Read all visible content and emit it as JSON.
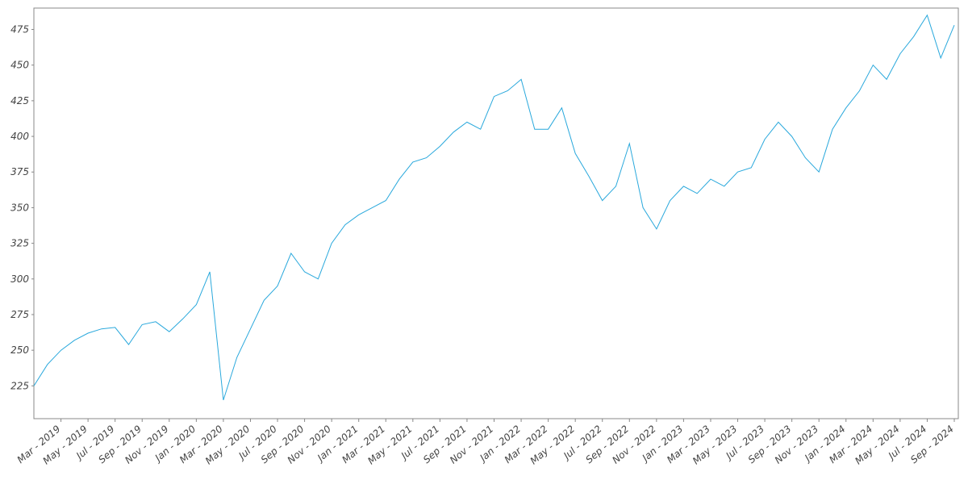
{
  "chart_data": {
    "type": "line",
    "x": [
      "2019-01",
      "2019-02",
      "2019-03",
      "2019-04",
      "2019-05",
      "2019-06",
      "2019-07",
      "2019-08",
      "2019-09",
      "2019-10",
      "2019-11",
      "2019-12",
      "2020-01",
      "2020-02",
      "2020-03",
      "2020-04",
      "2020-05",
      "2020-06",
      "2020-07",
      "2020-08",
      "2020-09",
      "2020-10",
      "2020-11",
      "2020-12",
      "2021-01",
      "2021-02",
      "2021-03",
      "2021-04",
      "2021-05",
      "2021-06",
      "2021-07",
      "2021-08",
      "2021-09",
      "2021-10",
      "2021-11",
      "2021-12",
      "2022-01",
      "2022-02",
      "2022-03",
      "2022-04",
      "2022-05",
      "2022-06",
      "2022-07",
      "2022-08",
      "2022-09",
      "2022-10",
      "2022-11",
      "2022-12",
      "2023-01",
      "2023-02",
      "2023-03",
      "2023-04",
      "2023-05",
      "2023-06",
      "2023-07",
      "2023-08",
      "2023-09",
      "2023-10",
      "2023-11",
      "2023-12",
      "2024-01",
      "2024-02",
      "2024-03",
      "2024-04",
      "2024-05",
      "2024-06",
      "2024-07",
      "2024-08",
      "2024-09"
    ],
    "series": [
      {
        "color": "#29a8dc",
        "values": [
          225,
          240,
          250,
          257,
          262,
          265,
          266,
          254,
          268,
          270,
          263,
          272,
          282,
          305,
          215,
          245,
          265,
          285,
          295,
          318,
          305,
          300,
          325,
          338,
          345,
          350,
          355,
          370,
          382,
          385,
          393,
          403,
          410,
          405,
          428,
          432,
          440,
          405,
          405,
          420,
          388,
          372,
          355,
          365,
          395,
          350,
          335,
          355,
          365,
          360,
          370,
          365,
          375,
          378,
          398,
          410,
          400,
          385,
          375,
          405,
          420,
          432,
          450,
          440,
          458,
          470,
          485,
          455,
          478
        ]
      }
    ],
    "xlim": [
      "2019-01",
      "2024-09"
    ],
    "xticks": [
      {
        "value": "2019-03",
        "label": "Mar - 2019"
      },
      {
        "value": "2019-05",
        "label": "May - 2019"
      },
      {
        "value": "2019-07",
        "label": "Jul - 2019"
      },
      {
        "value": "2019-09",
        "label": "Sep - 2019"
      },
      {
        "value": "2019-11",
        "label": "Nov - 2019"
      },
      {
        "value": "2020-01",
        "label": "Jan - 2020"
      },
      {
        "value": "2020-03",
        "label": "Mar - 2020"
      },
      {
        "value": "2020-05",
        "label": "May - 2020"
      },
      {
        "value": "2020-07",
        "label": "Jul - 2020"
      },
      {
        "value": "2020-09",
        "label": "Sep - 2020"
      },
      {
        "value": "2020-11",
        "label": "Nov - 2020"
      },
      {
        "value": "2021-01",
        "label": "Jan - 2021"
      },
      {
        "value": "2021-03",
        "label": "Mar - 2021"
      },
      {
        "value": "2021-05",
        "label": "May - 2021"
      },
      {
        "value": "2021-07",
        "label": "Jul - 2021"
      },
      {
        "value": "2021-09",
        "label": "Sep - 2021"
      },
      {
        "value": "2021-11",
        "label": "Nov - 2021"
      },
      {
        "value": "2022-01",
        "label": "Jan - 2022"
      },
      {
        "value": "2022-03",
        "label": "Mar - 2022"
      },
      {
        "value": "2022-05",
        "label": "May - 2022"
      },
      {
        "value": "2022-07",
        "label": "Jul - 2022"
      },
      {
        "value": "2022-09",
        "label": "Sep - 2022"
      },
      {
        "value": "2022-11",
        "label": "Nov - 2022"
      },
      {
        "value": "2023-01",
        "label": "Jan - 2023"
      },
      {
        "value": "2023-03",
        "label": "Mar - 2023"
      },
      {
        "value": "2023-05",
        "label": "May - 2023"
      },
      {
        "value": "2023-07",
        "label": "Jul - 2023"
      },
      {
        "value": "2023-09",
        "label": "Sep - 2023"
      },
      {
        "value": "2023-11",
        "label": "Nov - 2023"
      },
      {
        "value": "2024-01",
        "label": "Jan - 2024"
      },
      {
        "value": "2024-03",
        "label": "Mar - 2024"
      },
      {
        "value": "2024-05",
        "label": "May - 2024"
      },
      {
        "value": "2024-07",
        "label": "Jul - 2024"
      },
      {
        "value": "2024-09",
        "label": "Sep - 2024"
      }
    ],
    "ylim": [
      202,
      490
    ],
    "yticks": [
      225,
      250,
      275,
      300,
      325,
      350,
      375,
      400,
      425,
      450,
      475
    ],
    "grid": false
  }
}
